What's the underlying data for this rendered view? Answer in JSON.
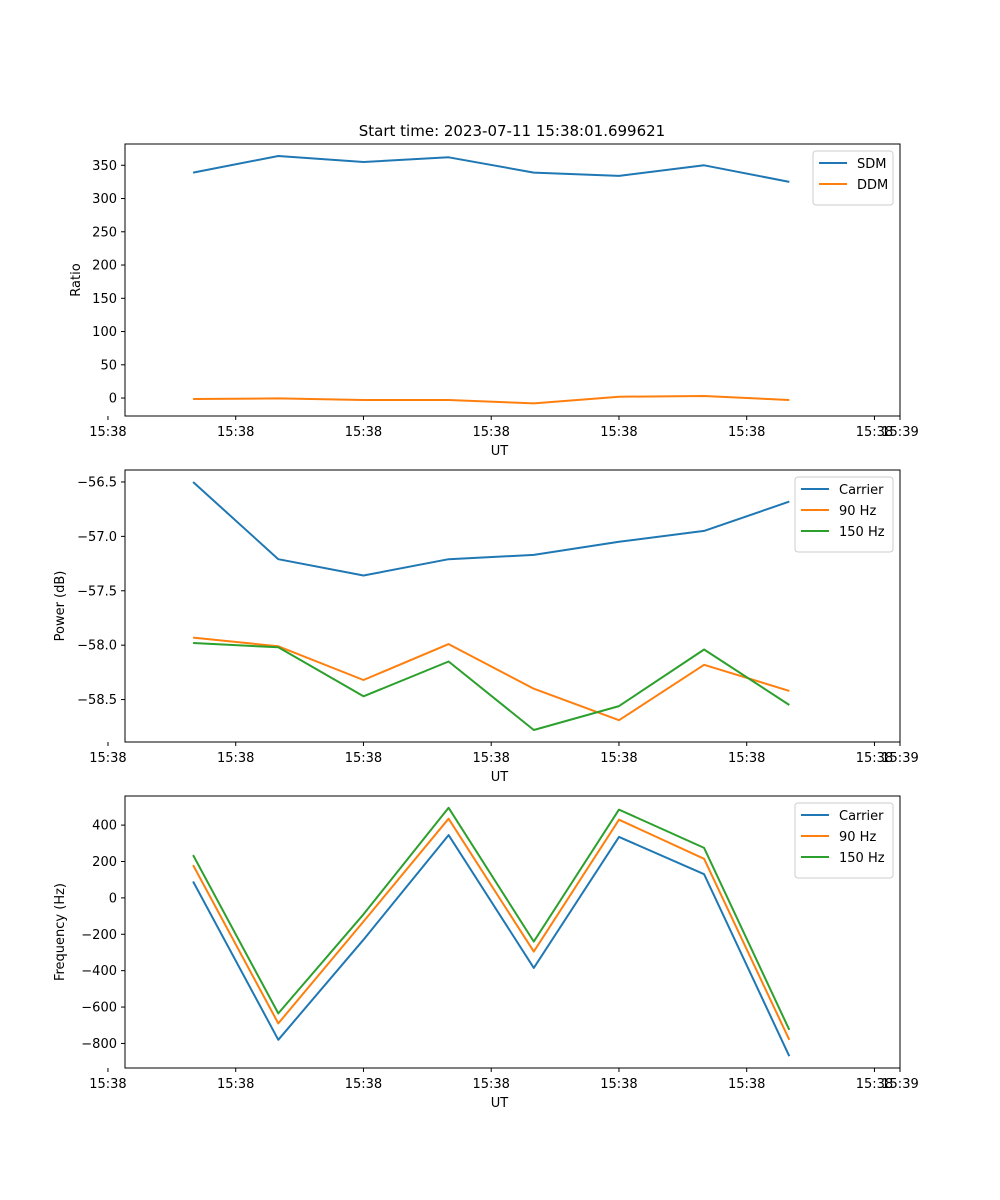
{
  "figure_title": "Start time: 2023-07-11 15:38:01.699621",
  "colors": {
    "blue": "#1f77b4",
    "orange": "#ff7f0e",
    "green": "#2ca02c"
  },
  "chart_data": [
    {
      "type": "line",
      "title": "Start time: 2023-07-11 15:38:01.699621",
      "xlabel": "UT",
      "ylabel": "Ratio",
      "x": [
        1,
        2,
        3,
        4,
        5,
        6,
        7,
        8
      ],
      "xlim": [
        0.2,
        9.3
      ],
      "x_ticks": [
        0,
        1.5,
        3,
        4.5,
        6,
        7.5,
        9
      ],
      "x_tick_labels": [
        "15:38",
        "15:38",
        "15:38",
        "15:38",
        "15:38",
        "15:38",
        "15:38",
        "15:39"
      ],
      "ylim": [
        -27,
        382
      ],
      "y_ticks": [
        0,
        50,
        100,
        150,
        200,
        250,
        300,
        350
      ],
      "y_tick_labels": [
        "0",
        "50",
        "100",
        "150",
        "200",
        "250",
        "300",
        "350"
      ],
      "legend": "upper right",
      "series": [
        {
          "name": "SDM",
          "color": "#1f77b4",
          "values": [
            339,
            364,
            355,
            362,
            339,
            334,
            350,
            325
          ]
        },
        {
          "name": "DDM",
          "color": "#ff7f0e",
          "values": [
            -1.5,
            -0.5,
            -3,
            -3,
            -8,
            2,
            3,
            -3
          ]
        }
      ]
    },
    {
      "type": "line",
      "xlabel": "UT",
      "ylabel": "Power (dB)",
      "x": [
        1,
        2,
        3,
        4,
        5,
        6,
        7,
        8
      ],
      "xlim": [
        0.2,
        9.3
      ],
      "x_ticks": [
        0,
        1.5,
        3,
        4.5,
        6,
        7.5,
        9
      ],
      "x_tick_labels": [
        "15:38",
        "15:38",
        "15:38",
        "15:38",
        "15:38",
        "15:38",
        "15:38",
        "15:39"
      ],
      "ylim": [
        -58.89,
        -56.39
      ],
      "y_ticks": [
        -58.5,
        -58.0,
        -57.5,
        -57.0,
        -56.5
      ],
      "y_tick_labels": [
        "−58.5",
        "−58.0",
        "−57.5",
        "−57.0",
        "−56.5"
      ],
      "legend": "upper right",
      "series": [
        {
          "name": "Carrier",
          "color": "#1f77b4",
          "values": [
            -56.5,
            -57.21,
            -57.36,
            -57.21,
            -57.17,
            -57.05,
            -56.95,
            -56.68
          ]
        },
        {
          "name": "90 Hz",
          "color": "#ff7f0e",
          "values": [
            -57.93,
            -58.01,
            -58.32,
            -57.99,
            -58.4,
            -58.69,
            -58.18,
            -58.42
          ]
        },
        {
          "name": "150 Hz",
          "color": "#2ca02c",
          "values": [
            -57.98,
            -58.02,
            -58.47,
            -58.15,
            -58.78,
            -58.56,
            -58.04,
            -58.55
          ]
        }
      ]
    },
    {
      "type": "line",
      "xlabel": "UT",
      "ylabel": "Frequency (Hz)",
      "x": [
        1,
        2,
        3,
        4,
        5,
        6,
        7,
        8
      ],
      "xlim": [
        0.2,
        9.3
      ],
      "x_ticks": [
        0,
        1.5,
        3,
        4.5,
        6,
        7.5,
        9
      ],
      "x_tick_labels": [
        "15:38",
        "15:38",
        "15:38",
        "15:38",
        "15:38",
        "15:38",
        "15:38",
        "15:39"
      ],
      "ylim": [
        -935,
        560
      ],
      "y_ticks": [
        -800,
        -600,
        -400,
        -200,
        0,
        200,
        400
      ],
      "y_tick_labels": [
        "−800",
        "−600",
        "−400",
        "−200",
        "0",
        "200",
        "400"
      ],
      "legend": "upper right",
      "series": [
        {
          "name": "Carrier",
          "color": "#1f77b4",
          "values": [
            90,
            -780,
            -230,
            345,
            -385,
            335,
            130,
            -870
          ]
        },
        {
          "name": "90 Hz",
          "color": "#ff7f0e",
          "values": [
            180,
            -690,
            -130,
            435,
            -295,
            430,
            215,
            -780
          ]
        },
        {
          "name": "150 Hz",
          "color": "#2ca02c",
          "values": [
            235,
            -635,
            -90,
            495,
            -240,
            485,
            275,
            -725
          ]
        }
      ]
    }
  ]
}
